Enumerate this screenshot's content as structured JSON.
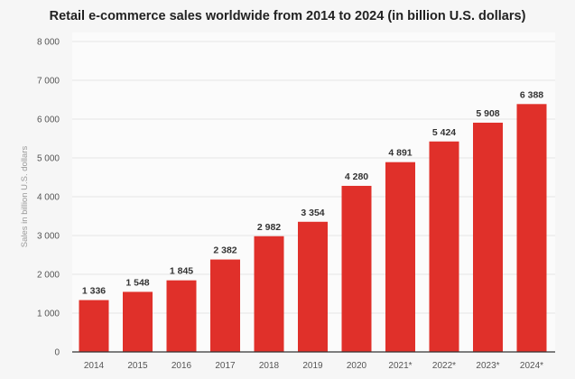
{
  "chart_data": {
    "type": "bar",
    "title": "Retail e-commerce sales worldwide from 2014 to 2024 (in billion U.S. dollars)",
    "xlabel": "",
    "ylabel": "Sales in billion U.S. dollars",
    "categories": [
      "2014",
      "2015",
      "2016",
      "2017",
      "2018",
      "2019",
      "2020",
      "2021*",
      "2022*",
      "2023*",
      "2024*"
    ],
    "values": [
      1336,
      1548,
      1845,
      2382,
      2982,
      3354,
      4280,
      4891,
      5424,
      5908,
      6388
    ],
    "data_labels": [
      "1 336",
      "1 548",
      "1 845",
      "2 382",
      "2 982",
      "3 354",
      "4 280",
      "4 891",
      "5 424",
      "5 908",
      "6 388"
    ],
    "ylim": [
      0,
      8000
    ],
    "yticks": [
      0,
      1000,
      2000,
      3000,
      4000,
      5000,
      6000,
      7000,
      8000
    ],
    "ytick_labels": [
      "0",
      "1 000",
      "2 000",
      "3 000",
      "4 000",
      "5 000",
      "6 000",
      "7 000",
      "8 000"
    ],
    "grid": true,
    "bar_color": "#e0302a"
  }
}
